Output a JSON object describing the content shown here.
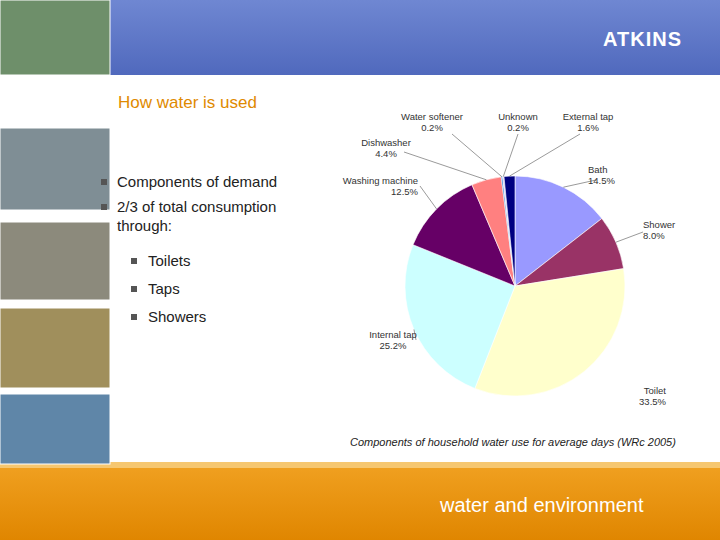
{
  "slide": {
    "logo": "ATKINS",
    "title": "How water is used",
    "bullets": [
      {
        "lines": [
          "Components of demand"
        ]
      },
      {
        "lines": [
          "2/3 of total consumption",
          "through:"
        ],
        "sub": [
          "Toilets",
          "Taps",
          "Showers"
        ]
      }
    ],
    "footer": "water and environment"
  },
  "chart_data": {
    "type": "pie",
    "categories": [
      "Bath",
      "Shower",
      "Toilet",
      "Internal tap",
      "Washing machine",
      "Dishwasher",
      "Water softener",
      "Unknown",
      "External tap"
    ],
    "values": [
      14.5,
      8.0,
      33.5,
      25.2,
      12.5,
      4.4,
      0.2,
      0.2,
      1.6
    ],
    "value_labels": [
      "14.5%",
      "8.0%",
      "33.5%",
      "25.2%",
      "12.5%",
      "4.4%",
      "0.2%",
      "0.2%",
      "1.6%"
    ],
    "colors": [
      "#9999ff",
      "#993366",
      "#ffffcc",
      "#ccffff",
      "#660066",
      "#ff8080",
      "#0066cc",
      "#ccccff",
      "#000080"
    ],
    "data_labels": true,
    "caption": "Components of household water use for average days (WRc 2005)"
  }
}
